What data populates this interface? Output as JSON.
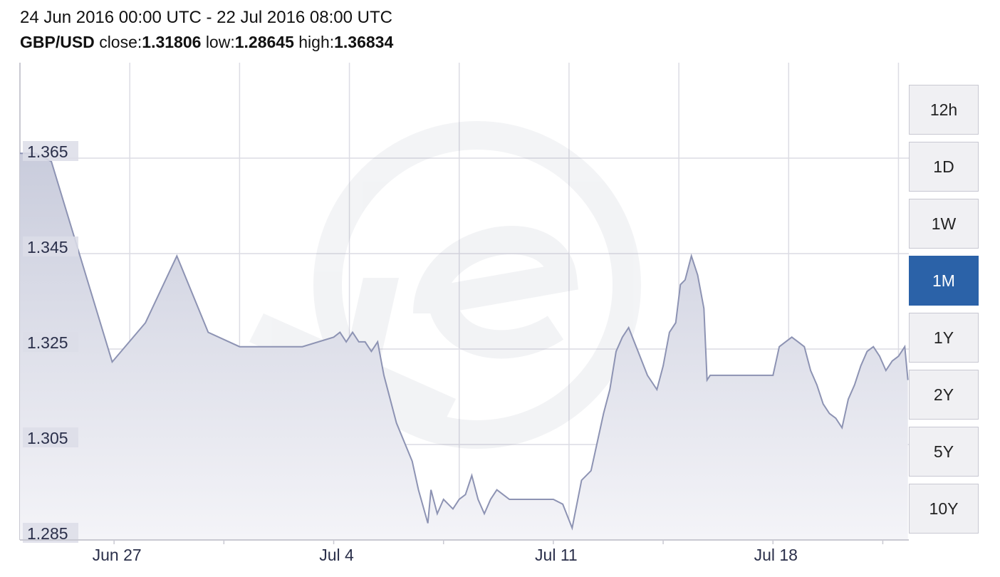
{
  "header": {
    "range": "24 Jun 2016 00:00 UTC - 22 Jul 2016 08:00 UTC",
    "pair": "GBP/USD",
    "close_label": "close:",
    "close": "1.31806",
    "low_label": "low:",
    "low": "1.28645",
    "high_label": "high:",
    "high": "1.36834"
  },
  "timeframes": [
    {
      "label": "12h",
      "active": false
    },
    {
      "label": "1D",
      "active": false
    },
    {
      "label": "1W",
      "active": false
    },
    {
      "label": "1M",
      "active": true
    },
    {
      "label": "1Y",
      "active": false
    },
    {
      "label": "2Y",
      "active": false
    },
    {
      "label": "5Y",
      "active": false
    },
    {
      "label": "10Y",
      "active": false
    }
  ],
  "colors": {
    "line": "#8d93b3",
    "fill_top": "#c9ccdc",
    "fill_bottom": "#f4f4f8",
    "grid": "#dcdce4",
    "active": "#2b62a8"
  },
  "chart_data": {
    "type": "area",
    "ylim": [
      1.285,
      1.385
    ],
    "ytick_labels": [
      "1.365",
      "1.345",
      "1.325",
      "1.305",
      "1.285"
    ],
    "ytick_values": [
      1.365,
      1.345,
      1.325,
      1.305,
      1.285
    ],
    "xtick_labels": [
      "Jun 27",
      "Jul 4",
      "Jul 11",
      "Jul 18"
    ],
    "xtick_values": [
      3,
      10,
      17,
      24
    ],
    "xlim": [
      0,
      28.33
    ],
    "grid": true,
    "series": [
      {
        "x": [
          0.0,
          0.5,
          1.0,
          2.94,
          4.0,
          5.0,
          6.0,
          7.0,
          9.0,
          10.0,
          10.2,
          10.4,
          10.6,
          10.8,
          11.0,
          11.2,
          11.4,
          11.6,
          12.0,
          12.5,
          12.7,
          13.0,
          13.1,
          13.3,
          13.5,
          13.8,
          14.0,
          14.2,
          14.4,
          14.6,
          14.8,
          15.0,
          15.2,
          15.4,
          15.6,
          15.8,
          16.0,
          16.2,
          16.5,
          16.8,
          17.0,
          17.3,
          17.6,
          17.9,
          18.2,
          18.4,
          18.6,
          18.8,
          19.0,
          19.2,
          19.4,
          19.7,
          20.0,
          20.3,
          20.5,
          20.7,
          20.9,
          21.05,
          21.2,
          21.4,
          21.6,
          21.8,
          21.9,
          22.0,
          22.3,
          22.6,
          23.0,
          23.5,
          24.0,
          24.2,
          24.4,
          24.6,
          24.8,
          25.0,
          25.2,
          25.4,
          25.6,
          25.8,
          26.0,
          26.2,
          26.4,
          26.6,
          26.8,
          27.0,
          27.2,
          27.4,
          27.6,
          27.8,
          28.0,
          28.2,
          28.3
        ],
        "y": [
          1.366,
          1.366,
          1.3643,
          1.3223,
          1.3305,
          1.3445,
          1.3285,
          1.3255,
          1.3255,
          1.3275,
          1.3285,
          1.3265,
          1.3285,
          1.3265,
          1.3265,
          1.3245,
          1.3265,
          1.3195,
          1.3095,
          1.3015,
          1.2955,
          1.2885,
          1.2955,
          1.2905,
          1.2935,
          1.2915,
          1.2935,
          1.2945,
          1.2985,
          1.2935,
          1.2905,
          1.2935,
          1.2955,
          1.2945,
          1.2935,
          1.2935,
          1.2935,
          1.2935,
          1.2935,
          1.2935,
          1.2935,
          1.2925,
          1.2875,
          1.2975,
          1.2995,
          1.3055,
          1.3115,
          1.3165,
          1.3245,
          1.3275,
          1.3295,
          1.3245,
          1.3195,
          1.3165,
          1.3215,
          1.3285,
          1.3305,
          1.3385,
          1.3395,
          1.3445,
          1.3405,
          1.3335,
          1.3185,
          1.3195,
          1.3195,
          1.3195,
          1.3195,
          1.3195,
          1.3195,
          1.3255,
          1.3265,
          1.3275,
          1.3265,
          1.3255,
          1.3205,
          1.3175,
          1.3135,
          1.3115,
          1.3105,
          1.3085,
          1.3145,
          1.3175,
          1.3215,
          1.3245,
          1.3255,
          1.3235,
          1.3205,
          1.3225,
          1.3235,
          1.3255,
          1.3185
        ]
      }
    ]
  }
}
